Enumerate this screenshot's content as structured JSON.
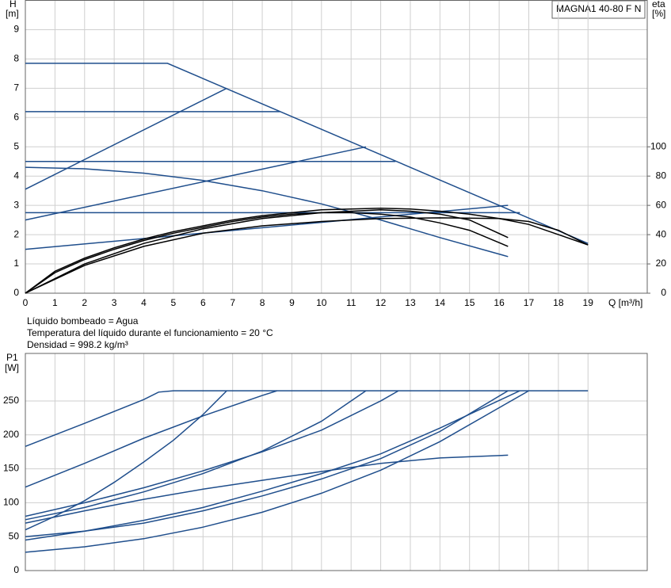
{
  "chart_data": [
    {
      "type": "line",
      "title": "MAGNA1 40-80 F N",
      "ylabel": "H",
      "yunit": "[m]",
      "y2label": "eta",
      "y2unit": "[%]",
      "xlabel": "Q [m³/h]",
      "annotations": [
        "Líquido bombeado = Agua",
        "Temperatura del líquido durante el funcionamiento = 20 °C",
        "Densidad = 998.2 kg/m³"
      ],
      "xlim": [
        0,
        21
      ],
      "xticks": [
        0,
        1,
        2,
        3,
        4,
        5,
        6,
        7,
        8,
        9,
        10,
        11,
        12,
        13,
        14,
        15,
        16,
        17,
        18,
        19
      ],
      "ylim": [
        0,
        10
      ],
      "yticks": [
        0,
        1,
        2,
        3,
        4,
        5,
        6,
        7,
        8,
        9
      ],
      "y2lim": [
        0,
        200
      ],
      "y2ticks": [
        0,
        20,
        40,
        60,
        80,
        100
      ],
      "grid": true,
      "series": [
        {
          "color": "#1f4e8c",
          "x": [
            0,
            4.8,
            19
          ],
          "values": [
            7.85,
            7.85,
            1.7
          ]
        },
        {
          "color": "#1f4e8c",
          "x": [
            0,
            8.6
          ],
          "values": [
            6.2,
            6.2
          ]
        },
        {
          "color": "#1f4e8c",
          "x": [
            0,
            12.5
          ],
          "values": [
            4.5,
            4.5
          ]
        },
        {
          "color": "#1f4e8c",
          "x": [
            0,
            16.7
          ],
          "values": [
            2.75,
            2.75
          ]
        },
        {
          "color": "#1f4e8c",
          "x": [
            0,
            6.8
          ],
          "values": [
            3.55,
            7.0
          ]
        },
        {
          "color": "#1f4e8c",
          "x": [
            0,
            11.5
          ],
          "values": [
            2.5,
            5.0
          ]
        },
        {
          "color": "#1f4e8c",
          "x": [
            0,
            16.3
          ],
          "values": [
            1.5,
            3.0
          ]
        },
        {
          "color": "#1f4e8c",
          "x": [
            0,
            2,
            4,
            6,
            8,
            10,
            12,
            14,
            16.3
          ],
          "values": [
            4.3,
            4.25,
            4.1,
            3.85,
            3.5,
            3.05,
            2.5,
            1.9,
            1.25
          ]
        },
        {
          "color": "#000000",
          "axis": "y2",
          "x": [
            0,
            1,
            2,
            3,
            4,
            5,
            6,
            7,
            8,
            9,
            10,
            11,
            12,
            13,
            14,
            15,
            16,
            17,
            18,
            19
          ],
          "values": [
            0,
            15,
            24,
            31,
            37,
            42,
            46,
            50,
            53,
            55,
            57,
            57.5,
            58,
            57.5,
            56,
            54,
            51,
            47,
            40,
            33
          ]
        },
        {
          "color": "#000000",
          "axis": "y2",
          "x": [
            0,
            1,
            2,
            3,
            4,
            5,
            6,
            7,
            8,
            9,
            10,
            11,
            12,
            13,
            14,
            15,
            16.3
          ],
          "values": [
            0,
            14,
            23,
            30,
            36,
            41,
            45,
            49,
            52,
            54,
            55,
            55,
            54,
            52,
            48,
            43,
            32
          ]
        },
        {
          "color": "#000000",
          "axis": "y2",
          "x": [
            0,
            2,
            4,
            6,
            8,
            10,
            12,
            14,
            16,
            17,
            18,
            19
          ],
          "values": [
            0,
            19,
            32,
            41,
            46,
            49,
            51,
            51.5,
            51,
            49,
            43,
            33
          ]
        },
        {
          "color": "#000000",
          "axis": "y2",
          "x": [
            0,
            2,
            4,
            6,
            8,
            10,
            12,
            13,
            14,
            15,
            16.3
          ],
          "values": [
            0,
            20,
            34,
            44,
            51,
            55,
            57,
            56,
            54,
            50,
            38
          ]
        }
      ]
    },
    {
      "type": "line",
      "ylabel": "P1",
      "yunit": "[W]",
      "xlim": [
        0,
        21
      ],
      "ylim": [
        0,
        320
      ],
      "yticks": [
        0,
        50,
        100,
        150,
        200,
        250
      ],
      "grid": true,
      "series": [
        {
          "color": "#1f4e8c",
          "x": [
            0,
            2,
            4,
            4.5,
            5,
            19
          ],
          "values": [
            183,
            217,
            252,
            263,
            265,
            265
          ]
        },
        {
          "color": "#1f4e8c",
          "x": [
            0,
            2,
            4,
            6,
            8,
            8.5
          ],
          "values": [
            123,
            158,
            195,
            228,
            258,
            265
          ]
        },
        {
          "color": "#1f4e8c",
          "x": [
            0,
            1,
            2,
            3,
            4,
            5,
            6,
            6.8
          ],
          "values": [
            60,
            80,
            103,
            130,
            160,
            192,
            230,
            265
          ]
        },
        {
          "color": "#1f4e8c",
          "x": [
            0,
            2,
            4,
            6,
            8,
            10,
            12,
            12.6
          ],
          "values": [
            80,
            100,
            122,
            147,
            175,
            207,
            250,
            265
          ]
        },
        {
          "color": "#1f4e8c",
          "x": [
            0,
            2,
            4,
            6,
            8,
            10,
            11.5
          ],
          "values": [
            75,
            93,
            116,
            143,
            176,
            220,
            265
          ]
        },
        {
          "color": "#1f4e8c",
          "x": [
            0,
            2,
            4,
            6,
            8,
            10,
            12,
            14,
            16.3
          ],
          "values": [
            50,
            58,
            70,
            88,
            110,
            135,
            165,
            205,
            265
          ]
        },
        {
          "color": "#1f4e8c",
          "x": [
            0,
            2,
            4,
            6,
            8,
            10,
            12,
            14,
            16.7
          ],
          "values": [
            45,
            58,
            74,
            93,
            117,
            143,
            172,
            210,
            265
          ]
        },
        {
          "color": "#1f4e8c",
          "x": [
            0,
            2,
            4,
            6,
            8,
            10,
            12,
            14,
            16,
            17
          ],
          "values": [
            27,
            35,
            47,
            64,
            86,
            114,
            148,
            190,
            240,
            265
          ]
        },
        {
          "color": "#1f4e8c",
          "x": [
            0,
            2,
            4,
            6,
            8,
            10,
            12,
            14,
            16.3
          ],
          "values": [
            70,
            88,
            105,
            120,
            133,
            146,
            158,
            166,
            170
          ]
        }
      ]
    }
  ]
}
